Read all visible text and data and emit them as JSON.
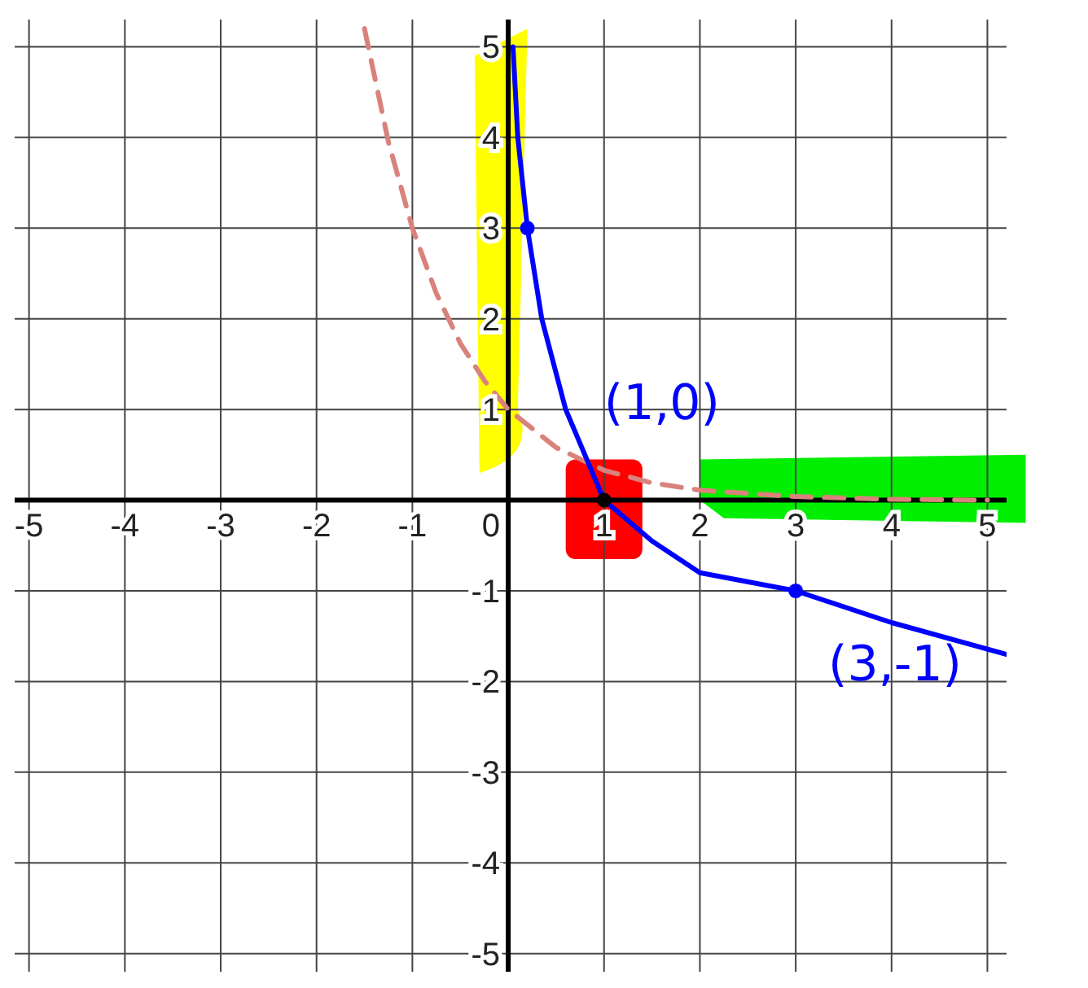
{
  "chart_data": {
    "type": "line",
    "xlim": [
      -5.15,
      5.2
    ],
    "ylim": [
      -5.2,
      5.3
    ],
    "xticks": [
      -5,
      -4,
      -3,
      -2,
      -1,
      0,
      1,
      2,
      3,
      4,
      5
    ],
    "yticks": [
      -5,
      -4,
      -3,
      -2,
      -1,
      1,
      2,
      3,
      4,
      5
    ],
    "grid": true,
    "legend": false,
    "series": [
      {
        "line_style": "dashed",
        "color": "#d9827c",
        "x": [
          -1.5,
          -1.25,
          -1,
          -0.75,
          -0.5,
          -0.25,
          0,
          0.5,
          1,
          1.5,
          2,
          3,
          4,
          5
        ],
        "values": [
          5.2,
          3.95,
          3,
          2.28,
          1.73,
          1.32,
          1,
          0.58,
          0.33,
          0.19,
          0.11,
          0.04,
          0.01,
          0
        ]
      },
      {
        "line_style": "solid",
        "color": "#0000ff",
        "x": [
          0.05,
          0.1,
          0.2,
          0.35,
          0.6,
          1,
          1.5,
          2,
          3,
          4,
          5.2
        ],
        "values": [
          5,
          4,
          3,
          2,
          1,
          0,
          -0.45,
          -0.8,
          -1,
          -1.35,
          -1.7
        ]
      },
      {
        "type": "scatter",
        "marker": "circle",
        "colors": [
          "#0000ff",
          "#000000",
          "#0000ff"
        ],
        "x": [
          0.2,
          1,
          3
        ],
        "values": [
          3,
          0,
          -1
        ]
      }
    ],
    "annotations": [
      {
        "text": "(1,0)",
        "x": 1,
        "y": 0
      },
      {
        "text": "(3,-1)",
        "x": 3,
        "y": -1
      }
    ]
  }
}
